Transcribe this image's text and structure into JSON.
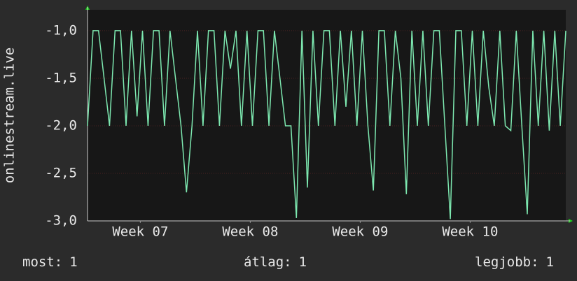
{
  "chart_data": {
    "type": "line",
    "y_label": "onlinestream.live",
    "x": [
      6.52,
      6.57,
      6.62,
      6.67,
      6.72,
      6.77,
      6.82,
      6.87,
      6.92,
      6.97,
      7.02,
      7.07,
      7.12,
      7.17,
      7.22,
      7.27,
      7.32,
      7.37,
      7.42,
      7.47,
      7.52,
      7.57,
      7.62,
      7.67,
      7.72,
      7.77,
      7.82,
      7.87,
      7.92,
      7.97,
      8.02,
      8.07,
      8.12,
      8.17,
      8.22,
      8.27,
      8.32,
      8.37,
      8.42,
      8.47,
      8.52,
      8.57,
      8.62,
      8.67,
      8.72,
      8.77,
      8.82,
      8.87,
      8.92,
      8.97,
      9.02,
      9.07,
      9.12,
      9.17,
      9.22,
      9.27,
      9.32,
      9.37,
      9.42,
      9.47,
      9.52,
      9.57,
      9.62,
      9.67,
      9.72,
      9.77,
      9.82,
      9.87,
      9.92,
      9.97,
      10.02,
      10.07,
      10.12,
      10.17,
      10.22,
      10.27,
      10.32,
      10.37,
      10.42,
      10.47,
      10.52,
      10.57,
      10.62,
      10.67,
      10.72,
      10.77,
      10.82,
      10.87
    ],
    "series": [
      {
        "name": "onlinestream.live",
        "color": "#7de8b0",
        "values": [
          -2,
          -1,
          -1,
          -1.5,
          -2,
          -1,
          -1,
          -2,
          -1,
          -1.9,
          -1,
          -2,
          -1,
          -1,
          -2,
          -1,
          -1.5,
          -2,
          -2.7,
          -2,
          -1,
          -2,
          -1,
          -1,
          -2,
          -1,
          -1.4,
          -1,
          -2,
          -1,
          -2,
          -1,
          -1,
          -2,
          -1,
          -1.5,
          -2,
          -2,
          -2.97,
          -1,
          -2.65,
          -1,
          -2,
          -1,
          -1,
          -2,
          -1,
          -1.8,
          -1,
          -2,
          -1,
          -2,
          -2.68,
          -1,
          -1,
          -2,
          -1,
          -1.5,
          -2.72,
          -1,
          -2,
          -1,
          -2,
          -1,
          -1,
          -2,
          -2.98,
          -1,
          -1,
          -2,
          -1,
          -2,
          -1,
          -1.6,
          -2,
          -1,
          -2,
          -2.05,
          -1,
          -2,
          -2.93,
          -1,
          -2,
          -1,
          -2.05,
          -1,
          -2,
          -1
        ]
      }
    ],
    "xlim": [
      6.52,
      10.87
    ],
    "xticks": [
      {
        "value": 7,
        "label": "Week 07"
      },
      {
        "value": 8,
        "label": "Week 08"
      },
      {
        "value": 9,
        "label": "Week 09"
      },
      {
        "value": 10,
        "label": "Week 10"
      }
    ],
    "ylim": [
      -3,
      -0.78
    ],
    "yticks": [
      {
        "value": -3,
        "label": "-3,0"
      },
      {
        "value": -2.5,
        "label": "-2,5"
      },
      {
        "value": -2,
        "label": "-2,0"
      },
      {
        "value": -1.5,
        "label": "-1,5"
      },
      {
        "value": -1,
        "label": "-1,0"
      }
    ],
    "grid": true,
    "stats": [
      {
        "label": "most:",
        "value": 1
      },
      {
        "label": "átlag:",
        "value": 1
      },
      {
        "label": "legjobb:",
        "value": 1
      }
    ]
  }
}
